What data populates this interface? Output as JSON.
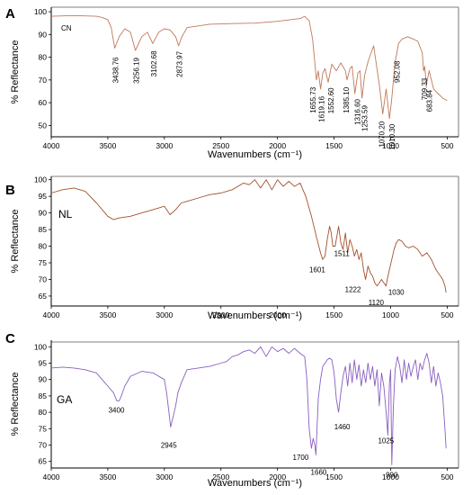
{
  "chart_data": [
    {
      "type": "line",
      "panel": "A",
      "sample": "CN",
      "xlabel": "Wavenumbers (cm⁻¹)",
      "ylabel": "% Reflectance",
      "xlim": [
        4000,
        400
      ],
      "ylim": [
        45,
        102
      ],
      "x_ticks": [
        4000,
        3500,
        3000,
        2500,
        2000,
        1500,
        1000,
        500
      ],
      "y_ticks": [
        50,
        60,
        70,
        80,
        90,
        100
      ],
      "color": "#c0785a",
      "legend_color": "#b22222",
      "grid": false,
      "x": [
        4000,
        3800,
        3600,
        3550,
        3500,
        3470,
        3438.76,
        3400,
        3350,
        3300,
        3256.19,
        3200,
        3150,
        3102.68,
        3050,
        3000,
        2950,
        2900,
        2873.97,
        2850,
        2800,
        2600,
        2400,
        2200,
        2000,
        1800,
        1760,
        1720,
        1690,
        1655.73,
        1640,
        1619.16,
        1600,
        1580,
        1552.6,
        1520,
        1480,
        1440,
        1400,
        1385.1,
        1360,
        1340,
        1316.6,
        1290,
        1270,
        1253.59,
        1230,
        1200,
        1150,
        1100,
        1070.2,
        1040,
        1010.3,
        990,
        960,
        952.08,
        930,
        900,
        850,
        800,
        760,
        720,
        709.33,
        700,
        683.84,
        660,
        620,
        580,
        540,
        500
      ],
      "series": [
        {
          "values": [
            98,
            98.3,
            98,
            97.5,
            96.5,
            93,
            84,
            89,
            92.5,
            91,
            83,
            89,
            91,
            86,
            91,
            92.5,
            92,
            89,
            85,
            88.5,
            93,
            94.5,
            94.8,
            95,
            95.8,
            97,
            98,
            96,
            88,
            70,
            74,
            66,
            73,
            75,
            69,
            77,
            74,
            77.5,
            74,
            70,
            75,
            76,
            64,
            73,
            74,
            62,
            72,
            78,
            85,
            68,
            55,
            66,
            53,
            62,
            78,
            80,
            86,
            88,
            89,
            88,
            87,
            82,
            74,
            76,
            68,
            74,
            66,
            64,
            62,
            61
          ]
        }
      ],
      "annotations": [
        {
          "text": "3438.76",
          "x": 3438.76,
          "y": 84
        },
        {
          "text": "3256.19",
          "x": 3256.19,
          "y": 83
        },
        {
          "text": "3102.68",
          "x": 3102.68,
          "y": 86
        },
        {
          "text": "2873.97",
          "x": 2873.97,
          "y": 85
        },
        {
          "text": "1655.73",
          "x": 1655.73,
          "y": 70
        },
        {
          "text": "1619.16",
          "x": 1619.16,
          "y": 66
        },
        {
          "text": "1552.60",
          "x": 1552.6,
          "y": 69
        },
        {
          "text": "1385.10",
          "x": 1385.1,
          "y": 70
        },
        {
          "text": "1316.60",
          "x": 1316.6,
          "y": 64
        },
        {
          "text": "1253.59",
          "x": 1253.59,
          "y": 62
        },
        {
          "text": "1070.20",
          "x": 1070.2,
          "y": 55
        },
        {
          "text": "1010.30",
          "x": 1010.3,
          "y": 53
        },
        {
          "text": "952.08",
          "x": 952.08,
          "y": 80
        },
        {
          "text": "709.33",
          "x": 709.33,
          "y": 74
        },
        {
          "text": "683.84",
          "x": 683.84,
          "y": 68
        }
      ]
    },
    {
      "type": "line",
      "panel": "B",
      "sample": "NL",
      "xlabel": "Wavenumbers  (cm⁻¹)",
      "ylabel": "% Reflectance",
      "xlim": [
        4000,
        400
      ],
      "ylim": [
        62,
        101
      ],
      "x_ticks": [
        4000,
        3500,
        3000,
        2500,
        2000,
        1500,
        1000,
        500
      ],
      "y_ticks": [
        65,
        70,
        75,
        80,
        85,
        90,
        95,
        100
      ],
      "color": "#a0522d",
      "grid": false,
      "x": [
        4000,
        3900,
        3800,
        3700,
        3600,
        3500,
        3450,
        3400,
        3300,
        3200,
        3100,
        3000,
        2950,
        2900,
        2850,
        2800,
        2700,
        2600,
        2500,
        2400,
        2300,
        2250,
        2200,
        2150,
        2100,
        2050,
        2000,
        1950,
        1900,
        1850,
        1800,
        1750,
        1700,
        1650,
        1620,
        1601,
        1580,
        1560,
        1540,
        1525,
        1511,
        1490,
        1460,
        1440,
        1420,
        1400,
        1380,
        1360,
        1340,
        1320,
        1300,
        1280,
        1260,
        1240,
        1222,
        1200,
        1180,
        1160,
        1140,
        1120,
        1100,
        1080,
        1060,
        1040,
        1030,
        1010,
        990,
        970,
        950,
        930,
        900,
        870,
        840,
        800,
        760,
        720,
        680,
        640,
        600,
        560,
        540,
        520,
        510
      ],
      "series": [
        {
          "values": [
            96,
            97,
            97.5,
            96.5,
            93,
            89,
            88,
            88.5,
            89,
            90,
            91,
            92,
            89.5,
            91,
            93,
            93.5,
            94.5,
            95.5,
            96,
            97,
            99,
            98.5,
            100,
            97.5,
            100,
            97,
            100,
            98,
            99.5,
            98,
            99,
            95,
            89,
            82,
            78,
            76,
            77,
            82,
            86,
            84,
            80,
            80,
            86,
            81,
            79,
            84,
            78,
            82,
            80,
            77,
            79,
            76,
            78,
            73,
            70,
            74,
            72,
            71,
            69,
            68,
            69,
            70,
            69,
            68,
            70,
            73,
            76,
            79,
            81,
            82,
            81.5,
            80,
            79.5,
            80,
            79,
            77,
            78,
            76,
            73,
            71,
            70,
            68,
            66
          ]
        }
      ],
      "annotations": [
        {
          "text": "1601",
          "x": 1601,
          "y": 76
        },
        {
          "text": "1511",
          "x": 1511,
          "y": 80
        },
        {
          "text": "1222",
          "x": 1222,
          "y": 70
        },
        {
          "text": "1120",
          "x": 1120,
          "y": 68
        },
        {
          "text": "1030",
          "x": 1030,
          "y": 70
        }
      ]
    },
    {
      "type": "line",
      "panel": "C",
      "sample": "GA",
      "xlabel": "Wavenumbers  (cm⁻¹)",
      "ylabel": "% Reflectance",
      "xlim": [
        4000,
        400
      ],
      "ylim": [
        63,
        102
      ],
      "x_ticks": [
        4000,
        3500,
        3000,
        2500,
        2000,
        1500,
        1000,
        500
      ],
      "y_ticks": [
        65,
        70,
        75,
        80,
        85,
        90,
        95,
        100
      ],
      "color": "#8a5ec0",
      "y_tick_color_95": "#2e8b57",
      "grid": false,
      "x": [
        4000,
        3900,
        3800,
        3700,
        3600,
        3550,
        3500,
        3450,
        3420,
        3400,
        3380,
        3350,
        3300,
        3200,
        3100,
        3000,
        2980,
        2960,
        2945,
        2920,
        2900,
        2880,
        2850,
        2800,
        2700,
        2600,
        2500,
        2450,
        2400,
        2350,
        2300,
        2250,
        2200,
        2150,
        2100,
        2050,
        2000,
        1950,
        1900,
        1850,
        1800,
        1760,
        1740,
        1720,
        1700,
        1685,
        1670,
        1660,
        1640,
        1620,
        1600,
        1580,
        1560,
        1540,
        1520,
        1500,
        1480,
        1460,
        1440,
        1420,
        1400,
        1380,
        1360,
        1340,
        1320,
        1300,
        1280,
        1260,
        1240,
        1220,
        1200,
        1180,
        1160,
        1140,
        1120,
        1100,
        1080,
        1060,
        1040,
        1025,
        1010,
        1000,
        990,
        975,
        960,
        940,
        920,
        900,
        880,
        860,
        840,
        820,
        800,
        780,
        760,
        740,
        720,
        700,
        680,
        660,
        640,
        620,
        600,
        580,
        560,
        540,
        520,
        510
      ],
      "series": [
        {
          "values": [
            93.5,
            93.8,
            93.5,
            93,
            92,
            90,
            88,
            86,
            83.5,
            83.5,
            85,
            88,
            91,
            92.5,
            92,
            90,
            86,
            80,
            75.5,
            79,
            82,
            86,
            89,
            93,
            93.5,
            94,
            95,
            95.5,
            97,
            97.5,
            98.5,
            99,
            98,
            100,
            97,
            100,
            98.5,
            99.5,
            98,
            99.5,
            98,
            97,
            90,
            75,
            69,
            72,
            70,
            67,
            84,
            90,
            94,
            95,
            96,
            96.5,
            96,
            92,
            84,
            80,
            86,
            91,
            94,
            88,
            95,
            89,
            96,
            90,
            94.5,
            88,
            93,
            89,
            95,
            90,
            94,
            88,
            93,
            82,
            92,
            88,
            80,
            73,
            89,
            93,
            64,
            82,
            93,
            97,
            94,
            89,
            96,
            90,
            95,
            91,
            94,
            96,
            90,
            95,
            93,
            96,
            98,
            95,
            89,
            94,
            88,
            92,
            89,
            85,
            75,
            69
          ]
        }
      ],
      "annotations": [
        {
          "text": "3400",
          "x": 3400,
          "y": 83.5
        },
        {
          "text": "2945",
          "x": 2945,
          "y": 75.5
        },
        {
          "text": "1700",
          "x": 1700,
          "y": 69
        },
        {
          "text": "1660",
          "x": 1660,
          "y": 67
        },
        {
          "text": "1460",
          "x": 1460,
          "y": 80
        },
        {
          "text": "1025",
          "x": 1025,
          "y": 73
        },
        {
          "text": "990",
          "x": 990,
          "y": 64
        }
      ]
    }
  ]
}
